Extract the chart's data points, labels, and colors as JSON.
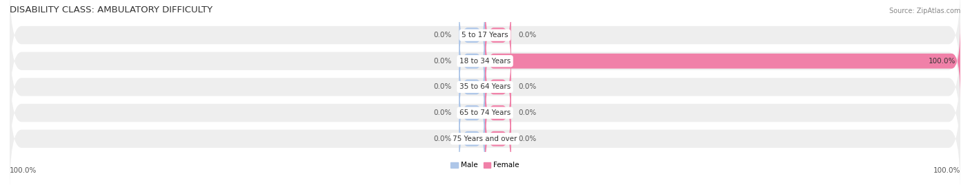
{
  "title": "DISABILITY CLASS: AMBULATORY DIFFICULTY",
  "source": "Source: ZipAtlas.com",
  "categories": [
    "5 to 17 Years",
    "18 to 34 Years",
    "35 to 64 Years",
    "65 to 74 Years",
    "75 Years and over"
  ],
  "male_values": [
    0.0,
    0.0,
    0.0,
    0.0,
    0.0
  ],
  "female_values": [
    0.0,
    100.0,
    0.0,
    0.0,
    0.0
  ],
  "male_color": "#aec6e8",
  "female_color": "#f080a8",
  "row_bg_color": "#eeeeee",
  "title_fontsize": 9.5,
  "label_fontsize": 7.5,
  "source_fontsize": 7,
  "x_left_label": "100.0%",
  "x_right_label": "100.0%",
  "max_value": 100,
  "stub_size": 5.5,
  "bar_height": 0.58
}
